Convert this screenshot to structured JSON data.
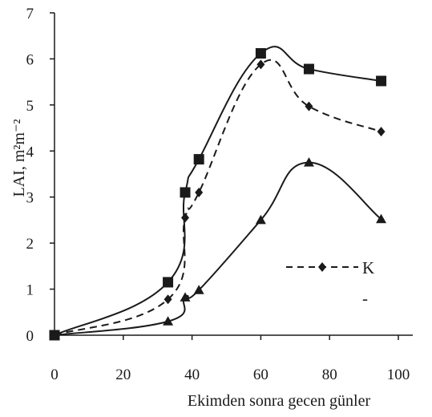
{
  "chart_data": {
    "type": "line",
    "title": "",
    "xlabel": "Ekimden sonra gecen günler",
    "ylabel": "LAI, m²m⁻²",
    "xlim": [
      0,
      100
    ],
    "ylim": [
      0,
      7
    ],
    "xticks": [
      0,
      20,
      40,
      60,
      80,
      100
    ],
    "yticks": [
      0,
      1,
      2,
      3,
      4,
      5,
      6,
      7
    ],
    "grid": false,
    "legend_position": "lower-right",
    "colors": {
      "line": "#1a1a1a",
      "background": "#ffffff"
    },
    "series": [
      {
        "marker": "square",
        "line_style": "solid",
        "x": [
          0,
          33,
          38,
          42,
          60,
          74,
          95
        ],
        "y": [
          0.0,
          1.15,
          3.1,
          3.82,
          6.12,
          5.78,
          5.52
        ]
      },
      {
        "name": "K",
        "marker": "diamond",
        "line_style": "dashed",
        "x": [
          0,
          33,
          38,
          42,
          60,
          74,
          95
        ],
        "y": [
          0.0,
          0.78,
          2.55,
          3.1,
          5.88,
          4.97,
          4.42
        ]
      },
      {
        "marker": "triangle",
        "line_style": "solid",
        "x": [
          0,
          33,
          38,
          42,
          60,
          74,
          95
        ],
        "y": [
          0.0,
          0.3,
          0.82,
          0.98,
          2.5,
          3.75,
          2.52
        ]
      }
    ],
    "legend": [
      {
        "label": "K"
      },
      {
        "label": "-"
      }
    ]
  }
}
